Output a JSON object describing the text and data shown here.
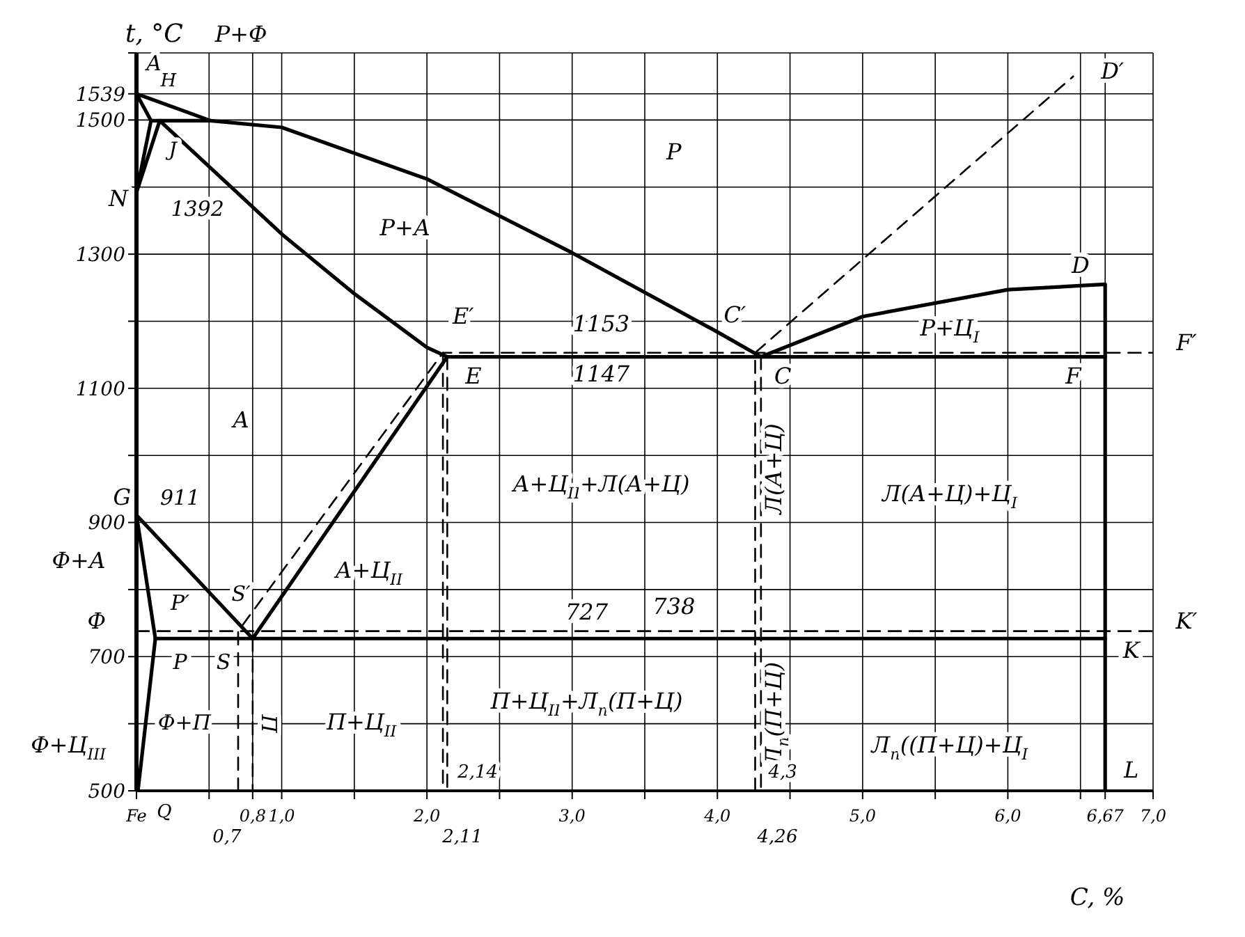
{
  "chart_data": {
    "type": "line",
    "xlabel": "C, %",
    "ylabel": "t, °C",
    "xlim": [
      0,
      7
    ],
    "ylim": [
      500,
      1600
    ],
    "xticks": [
      {
        "value": 0,
        "label": "Fe"
      },
      {
        "value": 0.5,
        "label": null
      },
      {
        "value": 0.8,
        "label": "0,8"
      },
      {
        "value": 1,
        "label": "1,0"
      },
      {
        "value": 1.5,
        "label": null
      },
      {
        "value": 2,
        "label": "2,0"
      },
      {
        "value": 2.5,
        "label": null
      },
      {
        "value": 3,
        "label": "3,0"
      },
      {
        "value": 3.5,
        "label": null
      },
      {
        "value": 4,
        "label": "4,0"
      },
      {
        "value": 4.5,
        "label": null
      },
      {
        "value": 5,
        "label": "5,0"
      },
      {
        "value": 5.5,
        "label": null
      },
      {
        "value": 6,
        "label": "6,0"
      },
      {
        "value": 6.5,
        "label": null
      },
      {
        "value": 6.67,
        "label": "6,67"
      },
      {
        "value": 7,
        "label": "7,0"
      }
    ],
    "yticks": [
      500,
      {
        "value": 600,
        "label": null
      },
      700,
      {
        "value": 800,
        "label": null
      },
      900,
      {
        "value": 1000,
        "label": null
      },
      1100,
      {
        "value": 1200,
        "label": null
      },
      1300,
      {
        "value": 1400,
        "label": null
      },
      1500,
      1539,
      {
        "value": 1600,
        "label": null
      }
    ],
    "grid": true,
    "marker": "none",
    "series": [
      {
        "type": "line",
        "color": "#000000",
        "line_style": "solid",
        "x": [
          0.1,
          0,
          0.51,
          1.0,
          2.0,
          3.0,
          4.0,
          4.3,
          5.0,
          6.0,
          6.67,
          6.67
        ],
        "values": [
          1499,
          1539,
          1499,
          1489,
          1412,
          1302,
          1184,
          1147,
          1207,
          1247,
          1255,
          500
        ]
      },
      {
        "type": "line",
        "color": "#000000",
        "line_style": "solid",
        "x": [
          0.1,
          0.51
        ],
        "values": [
          1499,
          1499
        ]
      },
      {
        "type": "line",
        "color": "#000000",
        "line_style": "solid",
        "x": [
          0.1,
          0,
          0.16,
          1.0,
          1.5,
          2.0,
          2.14
        ],
        "values": [
          1499,
          1392,
          1499,
          1330,
          1241,
          1161,
          1147
        ]
      },
      {
        "type": "line",
        "color": "#000000",
        "line_style": "solid",
        "x": [
          0.01,
          0.13,
          0,
          0.8,
          2.14,
          6.67
        ],
        "values": [
          500,
          727,
          911,
          727,
          1147,
          1147
        ]
      },
      {
        "type": "line",
        "color": "#000000",
        "line_style": "solid",
        "x": [
          0.13,
          6.67
        ],
        "values": [
          727,
          727
        ]
      },
      {
        "type": "line",
        "color": "#000000",
        "line_style": "dashed",
        "x": [
          0.7,
          0.7,
          2.11,
          7.0
        ],
        "values": [
          500,
          738,
          1153,
          1153
        ]
      },
      {
        "type": "line",
        "color": "#000000",
        "line_style": "dashed",
        "x": [
          4.26,
          4.26,
          6.45
        ],
        "values": [
          500,
          1153,
          1565
        ]
      },
      {
        "type": "line",
        "color": "#000000",
        "line_style": "dashed",
        "x": [
          0,
          7.0
        ],
        "values": [
          738,
          738
        ]
      },
      {
        "type": "line",
        "color": "#000000",
        "line_style": "dashed",
        "x": [
          0.8,
          0.8
        ],
        "values": [
          727,
          500
        ]
      },
      {
        "type": "line",
        "color": "#000000",
        "line_style": "dashed",
        "x": [
          2.11,
          2.11
        ],
        "values": [
          1153,
          500
        ]
      },
      {
        "type": "line",
        "color": "#000000",
        "line_style": "dashed",
        "x": [
          2.14,
          2.14
        ],
        "values": [
          1147,
          500
        ]
      },
      {
        "type": "line",
        "color": "#000000",
        "line_style": "dashed",
        "x": [
          4.3,
          4.3
        ],
        "values": [
          1147,
          500
        ]
      }
    ],
    "annotations": [
      "Р+Ф",
      "N",
      "G",
      "Ф+А",
      "Ф",
      "Ф+Ц$_{III}$",
      "F′",
      "K′",
      "A",
      "H",
      "J",
      "1392",
      "Р",
      "Р+А",
      "E′",
      "1153",
      "C′",
      "Р+Ц$_{I}$",
      "D",
      "D′",
      "1147",
      "E",
      "C",
      "F",
      "А",
      "А+Ц$_{II}$+Л(А+Ц)",
      "Л(А+Ц)",
      "Л(А+Ц)+Ц$_{I}$",
      "А+Ц$_{II}$",
      "911",
      "P′",
      "S′",
      "727",
      "738",
      "K",
      "P",
      "S",
      "Ф+П",
      "П",
      "П+Ц$_{II}$",
      "П+Ц$_{II}$+Л$_{п}$(П+Ц)",
      "Л$_{п}$(П+Ц)",
      "Л$_{п}$((П+Ц)+Ц$_{I}$",
      "L",
      "Q",
      "0,7",
      "2,14",
      "2,11",
      "4,3",
      "4,26"
    ]
  }
}
